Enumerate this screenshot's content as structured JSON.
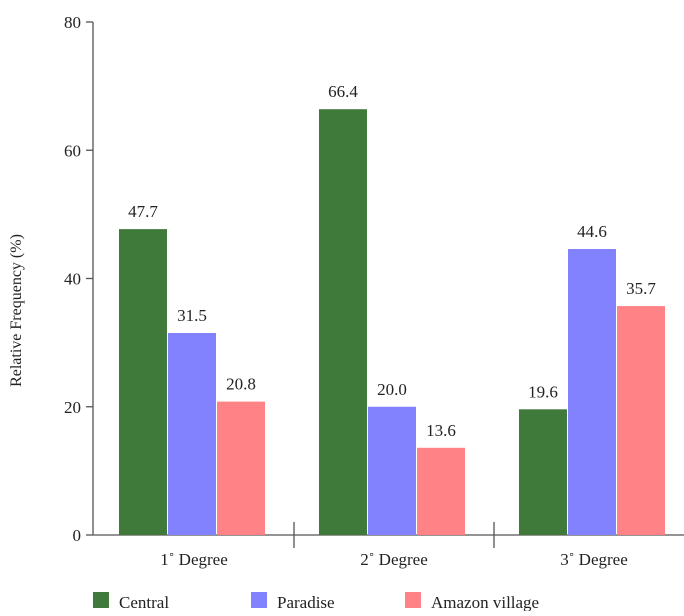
{
  "chart_data": {
    "type": "bar",
    "title": "",
    "xlabel": "",
    "ylabel": "Relative Frequency (%)",
    "ylim": [
      0,
      80
    ],
    "yticks": [
      0,
      20,
      40,
      60,
      80
    ],
    "grid": false,
    "legend_position": "bottom",
    "categories": [
      "1˚ Degree",
      "2˚ Degree",
      "3˚ Degree"
    ],
    "series": [
      {
        "name": "Central",
        "color": "#3f7a3b",
        "values": [
          47.7,
          66.4,
          19.6
        ],
        "labels": [
          "47.7",
          "66.4",
          "19.6"
        ]
      },
      {
        "name": "Paradise",
        "color": "#8282ff",
        "values": [
          31.5,
          20.0,
          44.6
        ],
        "labels": [
          "31.5",
          "20.0",
          "44.6"
        ]
      },
      {
        "name": "Amazon village",
        "color": "#ff8286",
        "values": [
          20.8,
          13.6,
          35.7
        ],
        "labels": [
          "20.8",
          "13.6",
          "35.7"
        ]
      }
    ]
  }
}
